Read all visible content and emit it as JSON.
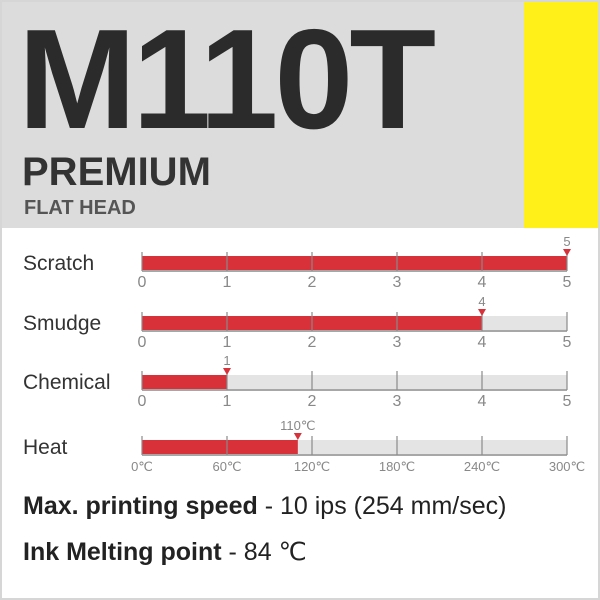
{
  "header": {
    "model": "M110T",
    "line": "PREMIUM",
    "subtitle": "FLAT HEAD",
    "accent_color": "#fff01a",
    "background": "#dcdcdc"
  },
  "chart_data": [
    {
      "type": "bar",
      "name": "Scratch",
      "value": 5,
      "value_label": "5",
      "ticks": [
        "0",
        "1",
        "2",
        "3",
        "4",
        "5"
      ],
      "xlim": [
        0,
        5
      ]
    },
    {
      "type": "bar",
      "name": "Smudge",
      "value": 4,
      "value_label": "4",
      "ticks": [
        "0",
        "1",
        "2",
        "3",
        "4",
        "5"
      ],
      "xlim": [
        0,
        5
      ]
    },
    {
      "type": "bar",
      "name": "Chemical",
      "value": 1,
      "value_label": "1",
      "ticks": [
        "0",
        "1",
        "2",
        "3",
        "4",
        "5"
      ],
      "xlim": [
        0,
        5
      ]
    },
    {
      "type": "bar",
      "name": "Heat",
      "value": 110,
      "value_label": "110℃",
      "ticks": [
        "0℃",
        "60℃",
        "120℃",
        "180℃",
        "240℃",
        "300℃"
      ],
      "xlim": [
        0,
        300
      ]
    }
  ],
  "colors": {
    "bar": "#d8313a",
    "track": "#e4e4e4",
    "axis": "#8a8a8a"
  },
  "specs": [
    {
      "label": "Max. printing speed",
      "value": " - 10 ips (254 mm/sec)"
    },
    {
      "label": "Ink Melting point",
      "value": " - 84 ℃"
    }
  ]
}
